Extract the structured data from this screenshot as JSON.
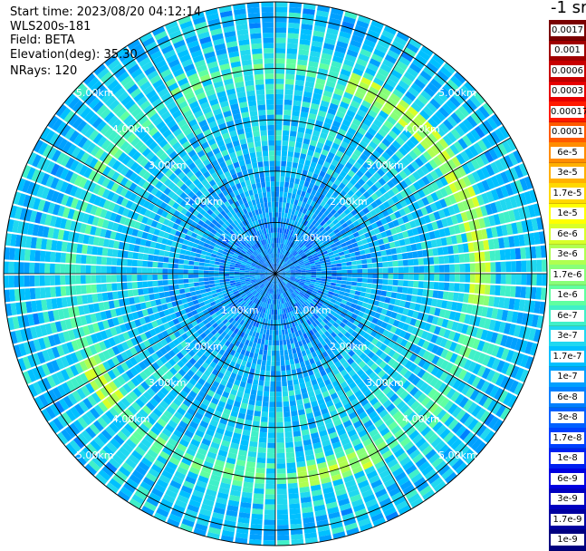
{
  "info": {
    "start_time": "Start time: 2023/08/20 04:12:14",
    "instrument": "WLS200s-181",
    "field": "Field: BETA",
    "elevation": "Elevation(deg): 35.30",
    "nrays": "NRays: 120"
  },
  "colorbar": {
    "unit_label": "-1 sr",
    "labels": [
      "0.0017",
      "0.001",
      "0.0006",
      "0.0003",
      "0.00017",
      "0.0001",
      "6e-5",
      "3e-5",
      "1.7e-5",
      "1e-5",
      "6e-6",
      "3e-6",
      "1.7e-6",
      "1e-6",
      "6e-7",
      "3e-7",
      "1.7e-7",
      "1e-7",
      "6e-8",
      "3e-8",
      "1.7e-8",
      "1e-8",
      "6e-9",
      "3e-9",
      "1.7e-9",
      "1e-9"
    ],
    "colors": [
      "#7a0000",
      "#a00000",
      "#c80000",
      "#e60000",
      "#ff1a00",
      "#ff5a00",
      "#ff8c00",
      "#ffb000",
      "#ffd800",
      "#ffff00",
      "#d8ff28",
      "#b0ff50",
      "#88ff78",
      "#60ffa0",
      "#40f0c8",
      "#20d8f0",
      "#00c0ff",
      "#00a0ff",
      "#0080ff",
      "#0060ff",
      "#0040ff",
      "#0020f0",
      "#0000e0",
      "#0000c0",
      "#0000a0",
      "#000080"
    ]
  },
  "chart_data": {
    "type": "heatmap",
    "projection": "polar PPI",
    "field": "BETA",
    "n_rays": 120,
    "rings_km": [
      1,
      2,
      3,
      4,
      5
    ],
    "ring_labels": [
      "1.00km",
      "2.00km",
      "3.00km",
      "4.00km",
      "5.00km"
    ],
    "max_range_km": 5.3,
    "spoke_step_deg": 30,
    "range_profile": [
      {
        "range_km": 0.0,
        "level": 8.0
      },
      {
        "range_km": 0.8,
        "level": 8.5
      },
      {
        "range_km": 1.5,
        "level": 9.2
      },
      {
        "range_km": 2.5,
        "level": 10.2
      },
      {
        "range_km": 3.5,
        "level": 10.8
      },
      {
        "range_km": 4.0,
        "level": 12.2
      },
      {
        "range_km": 4.3,
        "level": 11.0
      },
      {
        "range_km": 4.8,
        "level": 10.0
      },
      {
        "range_km": 5.3,
        "level": 10.2
      }
    ],
    "high_band": {
      "range_km": 4.0,
      "level": 16.0,
      "azimuth_sectors": [
        [
          20,
          100
        ],
        [
          150,
          175
        ],
        [
          230,
          245
        ]
      ]
    },
    "colorbar_note": "level = colorbar index counted from bottom (1e-9) upward"
  }
}
